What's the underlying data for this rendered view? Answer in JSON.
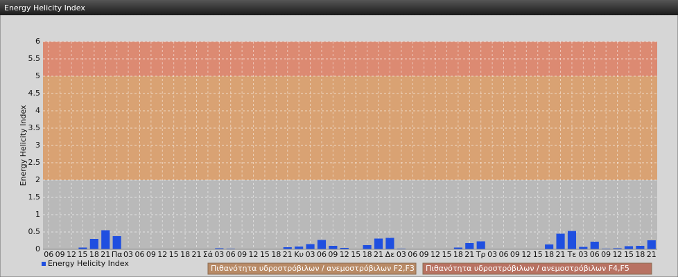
{
  "chart_data": {
    "type": "bar",
    "title": "Energy Helicity Index",
    "y_label": "Energy Helicity Index",
    "categories": [
      "06",
      "09",
      "12",
      "15",
      "18",
      "21",
      "Πα",
      "03",
      "06",
      "09",
      "12",
      "15",
      "18",
      "21",
      "Σά",
      "03",
      "06",
      "09",
      "12",
      "15",
      "18",
      "21",
      "Κυ",
      "03",
      "06",
      "09",
      "12",
      "15",
      "18",
      "21",
      "Δε",
      "03",
      "06",
      "09",
      "12",
      "15",
      "18",
      "21",
      "Τρ",
      "03",
      "06",
      "09",
      "12",
      "15",
      "18",
      "21",
      "Τε",
      "03",
      "06",
      "09",
      "12",
      "15",
      "18",
      "21"
    ],
    "series": [
      {
        "name": "Energy Helicity Index",
        "color": "#1f4fe0",
        "values": [
          0.01,
          0.01,
          0.01,
          0.05,
          0.3,
          0.55,
          0.38,
          0.01,
          0.01,
          0.01,
          0.01,
          0.01,
          0.01,
          0.01,
          0.01,
          0.03,
          0.02,
          0.01,
          0.01,
          0.01,
          0.01,
          0.06,
          0.08,
          0.15,
          0.27,
          0.1,
          0.04,
          0.01,
          0.12,
          0.31,
          0.33,
          0.02,
          0.01,
          0.01,
          0.01,
          0.01,
          0.05,
          0.18,
          0.23,
          0.01,
          0.01,
          0.01,
          0.01,
          0.01,
          0.14,
          0.45,
          0.53,
          0.07,
          0.22,
          0.02,
          0.03,
          0.09,
          0.1,
          0.26
        ]
      }
    ],
    "bands": [
      {
        "from": 0,
        "to": 2,
        "color": "#b9b9b9"
      },
      {
        "from": 2,
        "to": 5,
        "color": "#d9a273",
        "label": "Πιθανότητα υδροστρόβιλων / ανεμοστρόβιλων F2,F3",
        "legend_color": "#b88a66"
      },
      {
        "from": 5,
        "to": 6,
        "color": "#dc8a72",
        "label": "Πιθανότητα υδροστρόβιλων / ανεμοστρόβιλων F4,F5",
        "legend_color": "#b87262"
      }
    ],
    "ylim": [
      0,
      6
    ],
    "yticks": [
      0,
      0.5,
      1,
      1.5,
      2,
      2.5,
      3,
      3.5,
      4,
      4.5,
      5,
      5.5,
      6
    ],
    "grid": true
  }
}
